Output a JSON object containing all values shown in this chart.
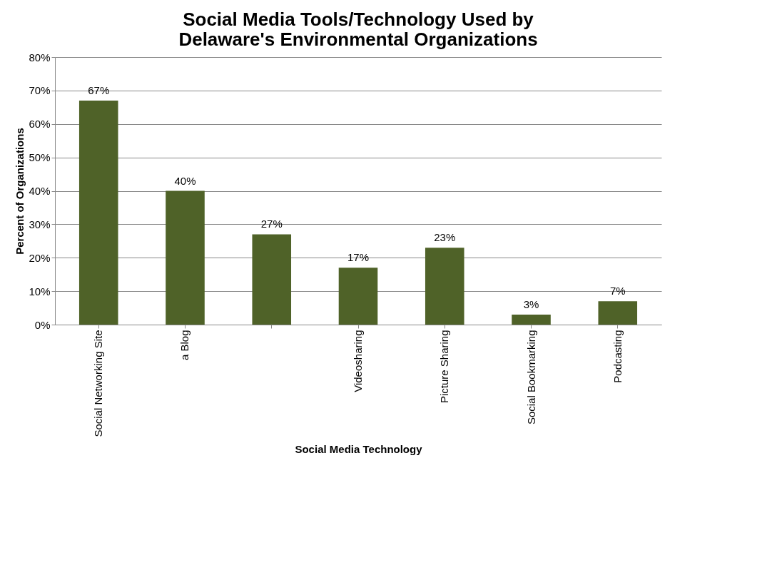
{
  "chart_data": {
    "type": "bar",
    "title": [
      "Social Media Tools/Technology Used by",
      "Delaware's Environmental Organizations"
    ],
    "xlabel": "Social Media Technology",
    "ylabel": "Percent of Organizations",
    "categories": [
      "Social Networking Site",
      "a Blog",
      null,
      "Videosharing",
      "Picture Sharing",
      "Social Bookmarking",
      "Podcasting"
    ],
    "values": [
      67,
      40,
      27,
      17,
      23,
      3,
      7
    ],
    "value_labels": [
      "67%",
      "40%",
      "27%",
      "17%",
      "23%",
      "3%",
      "7%"
    ],
    "color": "#4f6228",
    "ylim": [
      0,
      80
    ],
    "yticks": [
      {
        "value": 0,
        "label": "0%"
      },
      {
        "value": 10,
        "label": "10%"
      },
      {
        "value": 20,
        "label": "20%"
      },
      {
        "value": 30,
        "label": "30%"
      },
      {
        "value": 40,
        "label": "40%"
      },
      {
        "value": 50,
        "label": "50%"
      },
      {
        "value": 60,
        "label": "60%"
      },
      {
        "value": 70,
        "label": "70%"
      },
      {
        "value": 80,
        "label": "80%"
      }
    ],
    "grid": "y"
  }
}
